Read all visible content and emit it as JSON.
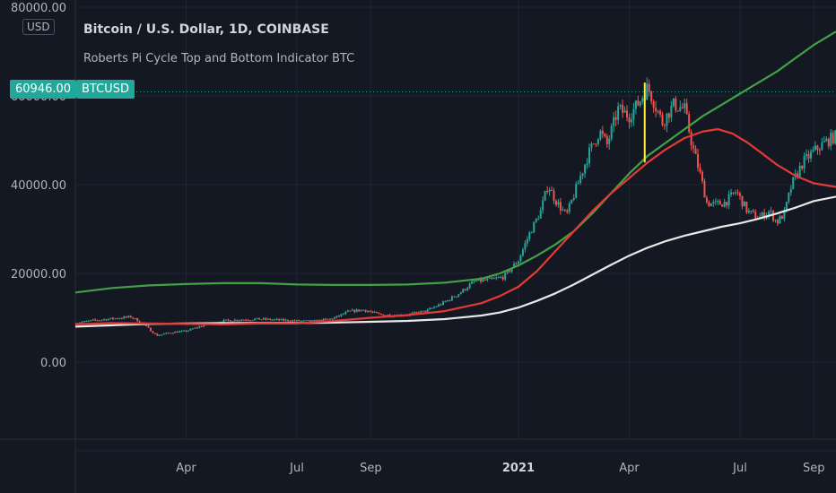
{
  "legend": {
    "title": "Bitcoin / U.S. Dollar, 1D, COINBASE",
    "indicator": "Roberts Pi Cycle Top and Bottom Indicator BTC"
  },
  "currency": "USD",
  "last_price_label": "60946.00",
  "symbol_label": "BTCUSD",
  "colors": {
    "background": "#141823",
    "up_candle": "#26a69a",
    "down_candle": "#ef5350",
    "green_ma": "#43a047",
    "red_ma": "#e53935",
    "white_ma": "#e8e8e8",
    "signal": "#ffeb3b",
    "price_line": "#22a89a"
  },
  "chart_data": {
    "type": "line",
    "title": "Bitcoin / U.S. Dollar, 1D, COINBASE",
    "subtitle": "Roberts Pi Cycle Top and Bottom Indicator BTC",
    "ylabel": "",
    "xlabel": "",
    "ylim": [
      -20000,
      80000
    ],
    "y_ticks": [
      0,
      20000,
      40000,
      60000,
      80000
    ],
    "y_tick_labels": [
      "0.00",
      "20000.00",
      "40000.00",
      "60000.00",
      "80000.00"
    ],
    "x_ticks": [
      {
        "label": "Apr",
        "month": 3,
        "year_tick": false
      },
      {
        "label": "Jul",
        "month": 6,
        "year_tick": false
      },
      {
        "label": "Sep",
        "month": 8,
        "year_tick": false
      },
      {
        "label": "2021",
        "month": 12,
        "year_tick": true
      },
      {
        "label": "Apr",
        "month": 15,
        "year_tick": false
      },
      {
        "label": "Jul",
        "month": 18,
        "year_tick": false
      },
      {
        "label": "Sep",
        "month": 20,
        "year_tick": false
      }
    ],
    "xlim": [
      0.0,
      20.6
    ],
    "last_price": 60946,
    "grid": true,
    "series": [
      {
        "key": "price",
        "kind": "candles",
        "points": [
          [
            0.0,
            8800
          ],
          [
            0.5,
            9400
          ],
          [
            1.0,
            9800
          ],
          [
            1.5,
            10200
          ],
          [
            1.8,
            8900
          ],
          [
            2.2,
            6000
          ],
          [
            2.6,
            6700
          ],
          [
            3.0,
            7000
          ],
          [
            3.5,
            8400
          ],
          [
            4.0,
            9300
          ],
          [
            4.5,
            9600
          ],
          [
            5.0,
            9700
          ],
          [
            5.5,
            9500
          ],
          [
            6.0,
            9300
          ],
          [
            6.5,
            9200
          ],
          [
            7.0,
            9900
          ],
          [
            7.4,
            11400
          ],
          [
            7.8,
            11800
          ],
          [
            8.2,
            10800
          ],
          [
            8.6,
            10500
          ],
          [
            9.0,
            10700
          ],
          [
            9.5,
            11500
          ],
          [
            10.0,
            13500
          ],
          [
            10.4,
            15500
          ],
          [
            10.8,
            18200
          ],
          [
            11.2,
            18500
          ],
          [
            11.6,
            19200
          ],
          [
            12.0,
            23000
          ],
          [
            12.3,
            29000
          ],
          [
            12.6,
            34000
          ],
          [
            12.8,
            40000
          ],
          [
            13.0,
            36500
          ],
          [
            13.3,
            33000
          ],
          [
            13.6,
            40000
          ],
          [
            13.9,
            47000
          ],
          [
            14.2,
            52000
          ],
          [
            14.4,
            49000
          ],
          [
            14.7,
            57000
          ],
          [
            15.0,
            55500
          ],
          [
            15.3,
            59000
          ],
          [
            15.5,
            62000
          ],
          [
            15.7,
            58000
          ],
          [
            15.9,
            54000
          ],
          [
            16.2,
            58000
          ],
          [
            16.5,
            57000
          ],
          [
            16.7,
            49000
          ],
          [
            16.9,
            43000
          ],
          [
            17.1,
            36000
          ],
          [
            17.3,
            35500
          ],
          [
            17.6,
            36000
          ],
          [
            17.9,
            38500
          ],
          [
            18.2,
            34000
          ],
          [
            18.5,
            32500
          ],
          [
            18.8,
            34000
          ],
          [
            19.0,
            31500
          ],
          [
            19.2,
            33500
          ],
          [
            19.4,
            40000
          ],
          [
            19.7,
            45000
          ],
          [
            20.0,
            47500
          ],
          [
            20.3,
            49500
          ],
          [
            20.6,
            51000
          ]
        ]
      },
      {
        "key": "green_ma",
        "kind": "line",
        "points": [
          [
            0.0,
            15700
          ],
          [
            1.0,
            16700
          ],
          [
            2.0,
            17300
          ],
          [
            3.0,
            17600
          ],
          [
            4.0,
            17800
          ],
          [
            5.0,
            17800
          ],
          [
            6.0,
            17500
          ],
          [
            7.0,
            17400
          ],
          [
            8.0,
            17400
          ],
          [
            9.0,
            17500
          ],
          [
            10.0,
            17900
          ],
          [
            11.0,
            18800
          ],
          [
            11.5,
            20000
          ],
          [
            12.0,
            21800
          ],
          [
            12.5,
            24000
          ],
          [
            13.0,
            26500
          ],
          [
            13.5,
            29500
          ],
          [
            14.0,
            33500
          ],
          [
            14.5,
            38000
          ],
          [
            15.0,
            42500
          ],
          [
            15.5,
            46500
          ],
          [
            16.0,
            49500
          ],
          [
            16.5,
            52500
          ],
          [
            17.0,
            55500
          ],
          [
            17.5,
            58000
          ],
          [
            18.0,
            60500
          ],
          [
            18.5,
            63000
          ],
          [
            19.0,
            65500
          ],
          [
            19.5,
            68500
          ],
          [
            20.0,
            71500
          ],
          [
            20.6,
            74500
          ]
        ]
      },
      {
        "key": "red_ma",
        "kind": "line",
        "points": [
          [
            0.0,
            8500
          ],
          [
            1.0,
            8800
          ],
          [
            2.0,
            8700
          ],
          [
            3.0,
            8600
          ],
          [
            4.0,
            8500
          ],
          [
            5.0,
            8700
          ],
          [
            6.0,
            8700
          ],
          [
            7.0,
            9300
          ],
          [
            8.0,
            10000
          ],
          [
            9.0,
            10600
          ],
          [
            10.0,
            11500
          ],
          [
            11.0,
            13300
          ],
          [
            11.5,
            14900
          ],
          [
            12.0,
            17000
          ],
          [
            12.5,
            20500
          ],
          [
            13.0,
            25000
          ],
          [
            13.5,
            29500
          ],
          [
            14.0,
            34000
          ],
          [
            14.5,
            38000
          ],
          [
            15.0,
            41500
          ],
          [
            15.5,
            45000
          ],
          [
            16.0,
            48000
          ],
          [
            16.5,
            50500
          ],
          [
            17.0,
            52000
          ],
          [
            17.4,
            52500
          ],
          [
            17.8,
            51500
          ],
          [
            18.2,
            49500
          ],
          [
            18.6,
            47000
          ],
          [
            19.0,
            44500
          ],
          [
            19.5,
            42000
          ],
          [
            20.0,
            40300
          ],
          [
            20.6,
            39500
          ]
        ]
      },
      {
        "key": "white_ma",
        "kind": "line",
        "points": [
          [
            0.0,
            8000
          ],
          [
            1.0,
            8300
          ],
          [
            2.0,
            8600
          ],
          [
            3.0,
            8700
          ],
          [
            4.0,
            8800
          ],
          [
            5.0,
            8800
          ],
          [
            6.0,
            8800
          ],
          [
            7.0,
            8900
          ],
          [
            8.0,
            9100
          ],
          [
            9.0,
            9300
          ],
          [
            10.0,
            9700
          ],
          [
            11.0,
            10500
          ],
          [
            11.5,
            11200
          ],
          [
            12.0,
            12300
          ],
          [
            12.5,
            13800
          ],
          [
            13.0,
            15500
          ],
          [
            13.5,
            17500
          ],
          [
            14.0,
            19700
          ],
          [
            14.5,
            21900
          ],
          [
            15.0,
            24000
          ],
          [
            15.5,
            25800
          ],
          [
            16.0,
            27300
          ],
          [
            16.5,
            28500
          ],
          [
            17.0,
            29500
          ],
          [
            17.5,
            30500
          ],
          [
            18.0,
            31300
          ],
          [
            18.5,
            32300
          ],
          [
            19.0,
            33500
          ],
          [
            19.5,
            34800
          ],
          [
            20.0,
            36300
          ],
          [
            20.6,
            37300
          ]
        ]
      },
      {
        "key": "signal",
        "kind": "vline",
        "x": 15.42,
        "y0": 45000,
        "y1": 63000
      }
    ]
  }
}
